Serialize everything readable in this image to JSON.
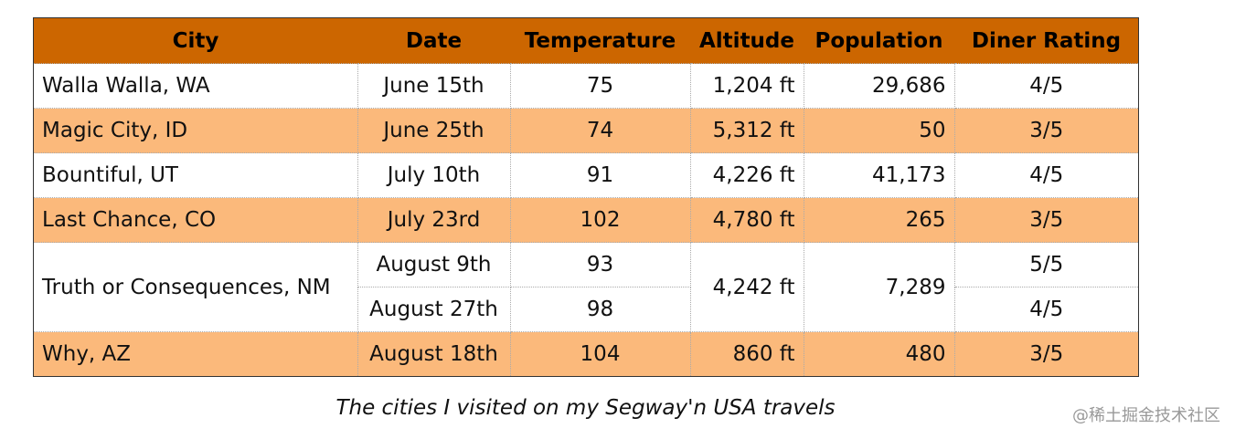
{
  "table": {
    "columns": [
      "City",
      "Date",
      "Temperature",
      "Altitude",
      "Population",
      "Diner Rating"
    ],
    "rows": [
      [
        "Walla Walla, WA",
        "June 15th",
        "75",
        "1,204 ft",
        "29,686",
        "4/5"
      ],
      [
        "Magic City, ID",
        "June 25th",
        "74",
        "5,312 ft",
        "50",
        "3/5"
      ],
      [
        "Bountiful, UT",
        "July 10th",
        "91",
        "4,226 ft",
        "41,173",
        "4/5"
      ],
      [
        "Last Chance, CO",
        "July 23rd",
        "102",
        "4,780 ft",
        "265",
        "3/5"
      ],
      [
        "Truth or Consequences, NM",
        "August 9th",
        "93",
        "4,242 ft",
        "7,289",
        "5/5"
      ],
      [
        "August 27th",
        "98",
        "4/5"
      ],
      [
        "Why, AZ",
        "August 18th",
        "104",
        "860 ft",
        "480",
        "3/5"
      ]
    ],
    "caption": "The cities I visited on my Segway'n USA travels"
  },
  "watermark": "@稀土掘金技术社区"
}
